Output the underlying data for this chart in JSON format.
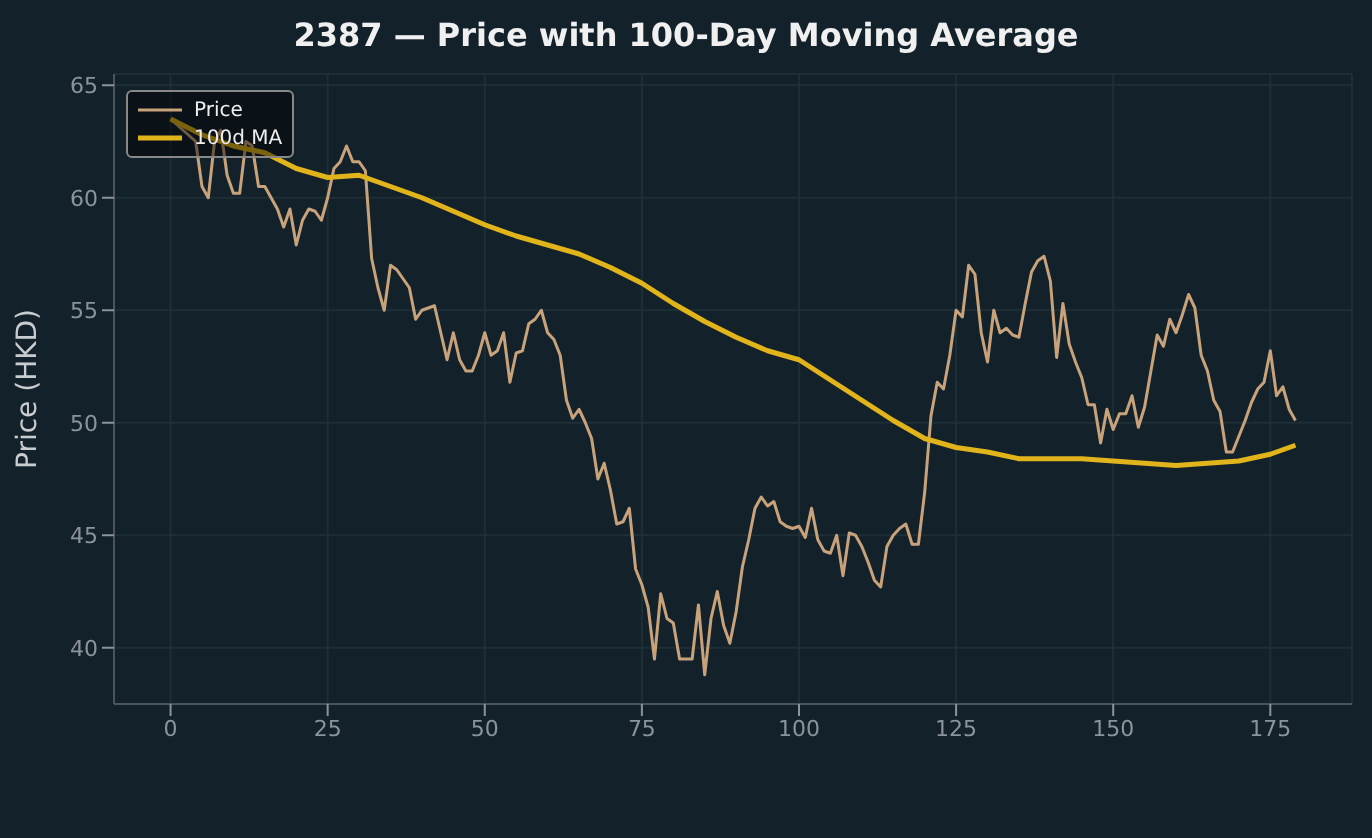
{
  "chart_data": {
    "type": "line",
    "title": "2387 — Price with 100-Day Moving Average",
    "ylabel": "Price (HKD)",
    "xlim": [
      -9,
      188
    ],
    "xticks": [
      0,
      25,
      50,
      75,
      100,
      125,
      150,
      175
    ],
    "ylim": [
      37.5,
      65.5
    ],
    "yticks": [
      40,
      45,
      50,
      55,
      60,
      65
    ],
    "grid": true,
    "legend": "top left",
    "line_style": "solid",
    "marker": "none",
    "series": [
      {
        "name": "Price",
        "color": "#c8a27a",
        "x": [
          0,
          2,
          4,
          5,
          6,
          7,
          8,
          9,
          10,
          11,
          12,
          13,
          14,
          15,
          16,
          17,
          18,
          19,
          20,
          21,
          22,
          23,
          24,
          25,
          26,
          27,
          28,
          29,
          30,
          31,
          32,
          33,
          34,
          35,
          36,
          37,
          38,
          39,
          40,
          41,
          42,
          43,
          44,
          45,
          46,
          47,
          48,
          49,
          50,
          51,
          52,
          53,
          54,
          55,
          56,
          57,
          58,
          59,
          60,
          61,
          62,
          63,
          64,
          65,
          66,
          67,
          68,
          69,
          70,
          71,
          72,
          73,
          74,
          75,
          76,
          77,
          78,
          79,
          80,
          81,
          82,
          83,
          84,
          85,
          86,
          87,
          88,
          89,
          90,
          91,
          92,
          93,
          94,
          95,
          96,
          97,
          98,
          99,
          100,
          101,
          102,
          103,
          104,
          105,
          106,
          107,
          108,
          109,
          110,
          111,
          112,
          113,
          114,
          115,
          116,
          117,
          118,
          119,
          120,
          121,
          122,
          123,
          124,
          125,
          126,
          127,
          128,
          129,
          130,
          131,
          132,
          133,
          134,
          135,
          136,
          137,
          138,
          139,
          140,
          141,
          142,
          143,
          144,
          145,
          146,
          147,
          148,
          149,
          150,
          151,
          152,
          153,
          154,
          155,
          156,
          157,
          158,
          159,
          160,
          161,
          162,
          163,
          164,
          165,
          166,
          167,
          168,
          169,
          170,
          171,
          172,
          173,
          174,
          175,
          176,
          177,
          178,
          179
        ],
        "values": [
          63.5,
          63,
          62.5,
          60.5,
          60,
          62.5,
          63,
          61,
          60.2,
          60.2,
          62.5,
          62.3,
          60.5,
          60.5,
          60,
          59.5,
          58.7,
          59.5,
          57.9,
          59,
          59.5,
          59.4,
          59,
          60,
          61.3,
          61.6,
          62.3,
          61.6,
          61.6,
          61.2,
          57.3,
          56,
          55,
          57,
          56.8,
          56.4,
          56,
          54.6,
          55,
          55.1,
          55.2,
          54,
          52.8,
          54,
          52.8,
          52.3,
          52.3,
          53,
          54,
          53,
          53.2,
          54,
          51.8,
          53.1,
          53.2,
          54.4,
          54.6,
          55,
          54,
          53.7,
          53,
          51,
          50.2,
          50.6,
          50,
          49.3,
          47.5,
          48.2,
          47,
          45.5,
          45.6,
          46.2,
          43.5,
          42.8,
          41.8,
          39.5,
          42.4,
          41.3,
          41.1,
          39.5,
          39.5,
          39.5,
          41.9,
          38.8,
          41.3,
          42.5,
          41,
          40.2,
          41.6,
          43.6,
          44.8,
          46.2,
          46.7,
          46.3,
          46.5,
          45.6,
          45.4,
          45.3,
          45.4,
          44.9,
          46.2,
          44.8,
          44.3,
          44.2,
          45,
          43.2,
          45.1,
          45,
          44.5,
          43.8,
          43,
          42.7,
          44.5,
          45,
          45.3,
          45.5,
          44.6,
          44.6,
          46.9,
          50.3,
          51.8,
          51.5,
          53,
          55,
          54.7,
          57,
          56.6,
          54,
          52.7,
          55,
          54,
          54.2,
          53.9,
          53.8,
          55.3,
          56.7,
          57.2,
          57.4,
          56.3,
          52.9,
          55.3,
          53.5,
          52.7,
          52,
          50.8,
          50.8,
          49.1,
          50.6,
          49.7,
          50.4,
          50.4,
          51.2,
          49.8,
          50.7,
          52.3,
          53.9,
          53.4,
          54.6,
          54,
          54.8,
          55.7,
          55.1,
          53,
          52.3,
          51,
          50.5,
          48.7,
          48.7,
          49.4,
          50.1,
          50.9,
          51.5,
          51.8,
          53.2,
          51.2,
          51.6,
          50.6,
          50.1
        ]
      },
      {
        "name": "100d MA",
        "color": "#e0b41a",
        "x": [
          0,
          5,
          10,
          15,
          20,
          25,
          30,
          35,
          40,
          45,
          50,
          55,
          60,
          65,
          70,
          75,
          80,
          85,
          90,
          95,
          100,
          105,
          110,
          115,
          120,
          125,
          130,
          135,
          140,
          145,
          150,
          155,
          160,
          165,
          170,
          175,
          179
        ],
        "values": [
          63.5,
          62.8,
          62.3,
          62,
          61.3,
          60.9,
          61,
          60.5,
          60,
          59.4,
          58.8,
          58.3,
          57.9,
          57.5,
          56.9,
          56.2,
          55.3,
          54.5,
          53.8,
          53.2,
          52.8,
          51.9,
          51,
          50.1,
          49.3,
          48.9,
          48.7,
          48.4,
          48.4,
          48.4,
          48.3,
          48.2,
          48.1,
          48.2,
          48.3,
          48.6,
          49
        ]
      }
    ]
  }
}
